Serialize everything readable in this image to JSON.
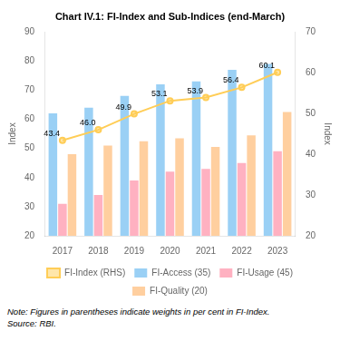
{
  "chart_data": {
    "type": "bar",
    "title": "Chart IV.1: FI-Index and Sub-Indices (end-March)",
    "categories": [
      "2017",
      "2018",
      "2019",
      "2020",
      "2021",
      "2022",
      "2023"
    ],
    "series": [
      {
        "name": "FI-Access (35)",
        "values": [
          62,
          64,
          68,
          72,
          73,
          77,
          79
        ]
      },
      {
        "name": "FI-Usage (45)",
        "values": [
          31,
          34,
          39,
          42,
          43,
          45,
          49
        ]
      },
      {
        "name": "FI-Quality (20)",
        "values": [
          48,
          51,
          52.5,
          53.5,
          50.5,
          54.5,
          62.5
        ]
      },
      {
        "name": "FI-Index (RHS)",
        "type": "line",
        "axis": "y2",
        "marker": "circle",
        "data_labels": true,
        "values": [
          43.4,
          46.0,
          49.9,
          53.1,
          53.9,
          56.4,
          60.1
        ],
        "value_labels": [
          "43.4",
          "46.0",
          "49.9",
          "53.1",
          "53.9",
          "56.4",
          "60.1"
        ]
      }
    ],
    "ylabel": "Index",
    "y2label": "Index",
    "ylim": [
      20,
      90
    ],
    "yticks": [
      20,
      30,
      40,
      50,
      60,
      70,
      80,
      90
    ],
    "y2lim": [
      20,
      70
    ],
    "y2ticks": [
      20,
      30,
      40,
      50,
      60,
      70
    ],
    "grid": false,
    "legend": "bottom",
    "annotations": [
      "Note: Figures in parentheses indicate weights in per cent in FI-Index.",
      "Source: RBI."
    ]
  }
}
